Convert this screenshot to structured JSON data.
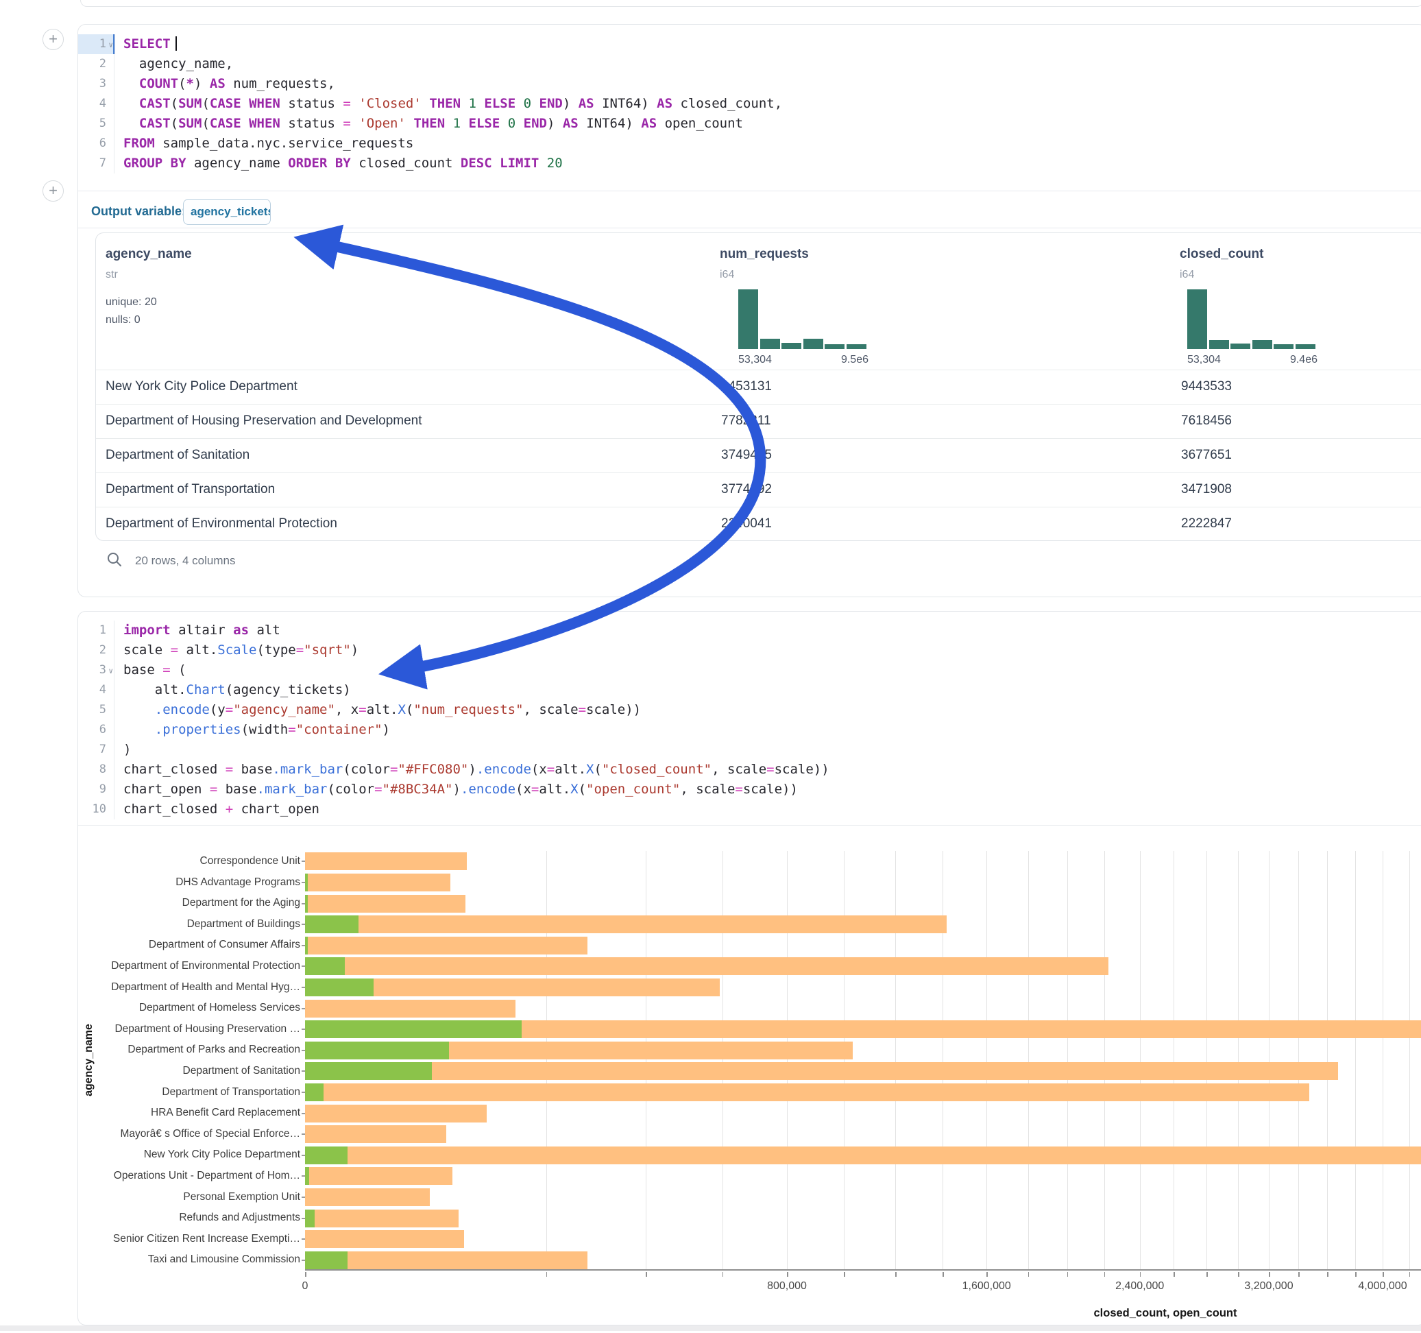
{
  "colors": {
    "bar_closed": "#FFC080",
    "bar_open": "#8BC34A",
    "hist_bar": "#35796b",
    "arrow": "#2b58d8",
    "keyword": "#9a27a8"
  },
  "gutter": {
    "add_button_label": "+",
    "fold_glyph": "∨"
  },
  "sql_cell": {
    "lines": [
      {
        "n": "1",
        "fold": true,
        "active": true,
        "tokens": [
          [
            "kw",
            "SELECT"
          ],
          [
            "cursor",
            ""
          ]
        ]
      },
      {
        "n": "2",
        "tokens": [
          [
            "pl",
            "  agency_name,"
          ]
        ]
      },
      {
        "n": "3",
        "tokens": [
          [
            "pl",
            "  "
          ],
          [
            "kw",
            "COUNT"
          ],
          [
            "pl",
            "("
          ],
          [
            "kw",
            "*"
          ],
          [
            "pl",
            ") "
          ],
          [
            "kw",
            "AS"
          ],
          [
            "pl",
            " num_requests,"
          ]
        ]
      },
      {
        "n": "4",
        "tokens": [
          [
            "pl",
            "  "
          ],
          [
            "kw",
            "CAST"
          ],
          [
            "pl",
            "("
          ],
          [
            "kw",
            "SUM"
          ],
          [
            "pl",
            "("
          ],
          [
            "kw",
            "CASE"
          ],
          [
            "pl",
            " "
          ],
          [
            "kw",
            "WHEN"
          ],
          [
            "pl",
            " status "
          ],
          [
            "op",
            "="
          ],
          [
            "pl",
            " "
          ],
          [
            "str",
            "'Closed'"
          ],
          [
            "pl",
            " "
          ],
          [
            "kw",
            "THEN"
          ],
          [
            "pl",
            " "
          ],
          [
            "num",
            "1"
          ],
          [
            "pl",
            " "
          ],
          [
            "kw",
            "ELSE"
          ],
          [
            "pl",
            " "
          ],
          [
            "num",
            "0"
          ],
          [
            "pl",
            " "
          ],
          [
            "kw",
            "END"
          ],
          [
            "pl",
            ") "
          ],
          [
            "kw",
            "AS"
          ],
          [
            "pl",
            " INT64) "
          ],
          [
            "kw",
            "AS"
          ],
          [
            "pl",
            " closed_count,"
          ]
        ]
      },
      {
        "n": "5",
        "tokens": [
          [
            "pl",
            "  "
          ],
          [
            "kw",
            "CAST"
          ],
          [
            "pl",
            "("
          ],
          [
            "kw",
            "SUM"
          ],
          [
            "pl",
            "("
          ],
          [
            "kw",
            "CASE"
          ],
          [
            "pl",
            " "
          ],
          [
            "kw",
            "WHEN"
          ],
          [
            "pl",
            " status "
          ],
          [
            "op",
            "="
          ],
          [
            "pl",
            " "
          ],
          [
            "str",
            "'Open'"
          ],
          [
            "pl",
            " "
          ],
          [
            "kw",
            "THEN"
          ],
          [
            "pl",
            " "
          ],
          [
            "num",
            "1"
          ],
          [
            "pl",
            " "
          ],
          [
            "kw",
            "ELSE"
          ],
          [
            "pl",
            " "
          ],
          [
            "num",
            "0"
          ],
          [
            "pl",
            " "
          ],
          [
            "kw",
            "END"
          ],
          [
            "pl",
            ") "
          ],
          [
            "kw",
            "AS"
          ],
          [
            "pl",
            " INT64) "
          ],
          [
            "kw",
            "AS"
          ],
          [
            "pl",
            " open_count"
          ]
        ]
      },
      {
        "n": "6",
        "tokens": [
          [
            "kw",
            "FROM"
          ],
          [
            "pl",
            " sample_data.nyc.service_requests"
          ]
        ]
      },
      {
        "n": "7",
        "tokens": [
          [
            "kw",
            "GROUP BY"
          ],
          [
            "pl",
            " agency_name "
          ],
          [
            "kw",
            "ORDER BY"
          ],
          [
            "pl",
            " closed_count "
          ],
          [
            "kw",
            "DESC"
          ],
          [
            "pl",
            " "
          ],
          [
            "kw",
            "LIMIT"
          ],
          [
            "pl",
            " "
          ],
          [
            "num",
            "20"
          ]
        ]
      }
    ]
  },
  "output_variable": {
    "label": "Output variable:",
    "value": "agency_tickets"
  },
  "table": {
    "columns": [
      {
        "name": "agency_name",
        "type": "str",
        "meta": [
          "unique: 20",
          "nulls: 0"
        ]
      },
      {
        "name": "num_requests",
        "type": "i64",
        "hist": {
          "bars": [
            100,
            17,
            10,
            17,
            8,
            8
          ],
          "min": "53,304",
          "max": "9.5e6"
        }
      },
      {
        "name": "closed_count",
        "type": "i64",
        "hist": {
          "bars": [
            100,
            15,
            9,
            15,
            8,
            8
          ],
          "min": "53,304",
          "max": "9.4e6"
        }
      }
    ],
    "rows": [
      [
        "New York City Police Department",
        "9453131",
        "9443533"
      ],
      [
        "Department of Housing Preservation and Development",
        "7782211",
        "7618456"
      ],
      [
        "Department of Sanitation",
        "3749485",
        "3677651"
      ],
      [
        "Department of Transportation",
        "3774892",
        "3471908"
      ],
      [
        "Department of Environmental Protection",
        "2240041",
        "2222847"
      ]
    ],
    "footer": "20 rows, 4 columns"
  },
  "python_cell": {
    "lines": [
      {
        "n": "1",
        "tokens": [
          [
            "kw",
            "import"
          ],
          [
            "pl",
            " altair "
          ],
          [
            "kw",
            "as"
          ],
          [
            "pl",
            " alt"
          ]
        ]
      },
      {
        "n": "2",
        "tokens": [
          [
            "pl",
            "scale "
          ],
          [
            "op",
            "="
          ],
          [
            "pl",
            " alt."
          ],
          [
            "fn",
            "Scale"
          ],
          [
            "pl",
            "(type"
          ],
          [
            "op",
            "="
          ],
          [
            "str",
            "\"sqrt\""
          ],
          [
            "pl",
            ")"
          ]
        ]
      },
      {
        "n": "3",
        "fold": true,
        "tokens": [
          [
            "pl",
            "base "
          ],
          [
            "op",
            "="
          ],
          [
            "pl",
            " ("
          ]
        ]
      },
      {
        "n": "4",
        "tokens": [
          [
            "pl",
            "    alt."
          ],
          [
            "fn",
            "Chart"
          ],
          [
            "pl",
            "(agency_tickets)"
          ]
        ]
      },
      {
        "n": "5",
        "tokens": [
          [
            "pl",
            "    "
          ],
          [
            "fn",
            ".encode"
          ],
          [
            "pl",
            "(y"
          ],
          [
            "op",
            "="
          ],
          [
            "str",
            "\"agency_name\""
          ],
          [
            "pl",
            ", x"
          ],
          [
            "op",
            "="
          ],
          [
            "pl",
            "alt."
          ],
          [
            "fn",
            "X"
          ],
          [
            "pl",
            "("
          ],
          [
            "str",
            "\"num_requests\""
          ],
          [
            "pl",
            ", scale"
          ],
          [
            "op",
            "="
          ],
          [
            "pl",
            "scale))"
          ]
        ]
      },
      {
        "n": "6",
        "tokens": [
          [
            "pl",
            "    "
          ],
          [
            "fn",
            ".properties"
          ],
          [
            "pl",
            "(width"
          ],
          [
            "op",
            "="
          ],
          [
            "str",
            "\"container\""
          ],
          [
            "pl",
            ")"
          ]
        ]
      },
      {
        "n": "7",
        "tokens": [
          [
            "pl",
            ")"
          ]
        ]
      },
      {
        "n": "8",
        "tokens": [
          [
            "pl",
            "chart_closed "
          ],
          [
            "op",
            "="
          ],
          [
            "pl",
            " base"
          ],
          [
            "fn",
            ".mark_bar"
          ],
          [
            "pl",
            "(color"
          ],
          [
            "op",
            "="
          ],
          [
            "str",
            "\"#FFC080\""
          ],
          [
            "pl",
            ")"
          ],
          [
            "fn",
            ".encode"
          ],
          [
            "pl",
            "(x"
          ],
          [
            "op",
            "="
          ],
          [
            "pl",
            "alt."
          ],
          [
            "fn",
            "X"
          ],
          [
            "pl",
            "("
          ],
          [
            "str",
            "\"closed_count\""
          ],
          [
            "pl",
            ", scale"
          ],
          [
            "op",
            "="
          ],
          [
            "pl",
            "scale))"
          ]
        ]
      },
      {
        "n": "9",
        "tokens": [
          [
            "pl",
            "chart_open "
          ],
          [
            "op",
            "="
          ],
          [
            "pl",
            " base"
          ],
          [
            "fn",
            ".mark_bar"
          ],
          [
            "pl",
            "(color"
          ],
          [
            "op",
            "="
          ],
          [
            "str",
            "\"#8BC34A\""
          ],
          [
            "pl",
            ")"
          ],
          [
            "fn",
            ".encode"
          ],
          [
            "pl",
            "(x"
          ],
          [
            "op",
            "="
          ],
          [
            "pl",
            "alt."
          ],
          [
            "fn",
            "X"
          ],
          [
            "pl",
            "("
          ],
          [
            "str",
            "\"open_count\""
          ],
          [
            "pl",
            ", scale"
          ],
          [
            "op",
            "="
          ],
          [
            "pl",
            "scale))"
          ]
        ]
      },
      {
        "n": "10",
        "tokens": [
          [
            "pl",
            "chart_closed "
          ],
          [
            "op",
            "+"
          ],
          [
            "pl",
            " chart_open"
          ]
        ]
      }
    ]
  },
  "chart_data": {
    "type": "bar",
    "orientation": "horizontal",
    "x_scale": "sqrt",
    "xlabel": "closed_count, open_count",
    "ylabel": "agency_name",
    "grid": true,
    "gridline_step": 200000,
    "x_ticks": [
      0,
      800000,
      1600000,
      2400000,
      3200000,
      4000000
    ],
    "x_tick_labels": [
      "0",
      "800,000",
      "1,600,000",
      "2,400,000",
      "3,200,000",
      "4,000,000"
    ],
    "categories": [
      "Correspondence Unit",
      "DHS Advantage Programs",
      "Department for the Aging",
      "Department of Buildings",
      "Department of Consumer Affairs",
      "Department of Environmental Protection",
      "Department of Health and Mental Hyg…",
      "Department of Homeless Services",
      "Department of Housing Preservation …",
      "Department of Parks and Recreation",
      "Department of Sanitation",
      "Department of Transportation",
      "HRA Benefit Card Replacement",
      "Mayorâ€ s Office of Special Enforce…",
      "New York City Police Department",
      "Operations Unit - Department of Hom…",
      "Personal Exemption Unit",
      "Refunds and Adjustments",
      "Senior Citizen Rent Increase Exempti…",
      "Taxi and Limousine Commission"
    ],
    "series": [
      {
        "name": "closed_count",
        "color": "#FFC080",
        "values": [
          90000,
          73000,
          88600,
          1418000,
          275000,
          2222847,
          592600,
          152500,
          7618456,
          1033000,
          3677651,
          3471908,
          113700,
          68700,
          9443533,
          74800,
          53304,
          81200,
          87100,
          275000
        ]
      },
      {
        "name": "open_count",
        "color": "#8BC34A",
        "values": [
          0,
          30,
          30,
          9850,
          20,
          5450,
          16200,
          0,
          161600,
          71400,
          55400,
          1180,
          0,
          0,
          6220,
          60,
          0,
          320,
          0,
          6220
        ]
      }
    ]
  }
}
